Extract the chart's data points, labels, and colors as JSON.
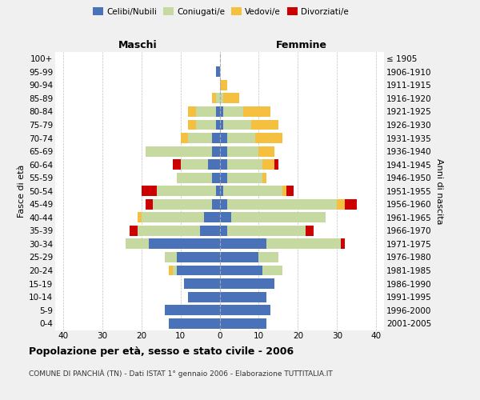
{
  "age_groups": [
    "0-4",
    "5-9",
    "10-14",
    "15-19",
    "20-24",
    "25-29",
    "30-34",
    "35-39",
    "40-44",
    "45-49",
    "50-54",
    "55-59",
    "60-64",
    "65-69",
    "70-74",
    "75-79",
    "80-84",
    "85-89",
    "90-94",
    "95-99",
    "100+"
  ],
  "birth_years": [
    "2001-2005",
    "1996-2000",
    "1991-1995",
    "1986-1990",
    "1981-1985",
    "1976-1980",
    "1971-1975",
    "1966-1970",
    "1961-1965",
    "1956-1960",
    "1951-1955",
    "1946-1950",
    "1941-1945",
    "1936-1940",
    "1931-1935",
    "1926-1930",
    "1921-1925",
    "1916-1920",
    "1911-1915",
    "1906-1910",
    "≤ 1905"
  ],
  "males": {
    "celibi": [
      13,
      14,
      8,
      9,
      11,
      11,
      18,
      5,
      4,
      2,
      1,
      2,
      3,
      2,
      2,
      1,
      1,
      0,
      0,
      1,
      0
    ],
    "coniugati": [
      0,
      0,
      0,
      0,
      1,
      3,
      6,
      16,
      16,
      15,
      15,
      9,
      7,
      17,
      6,
      5,
      5,
      1,
      0,
      0,
      0
    ],
    "vedovi": [
      0,
      0,
      0,
      0,
      1,
      0,
      0,
      0,
      1,
      0,
      0,
      0,
      0,
      0,
      2,
      2,
      2,
      1,
      0,
      0,
      0
    ],
    "divorziati": [
      0,
      0,
      0,
      0,
      0,
      0,
      0,
      2,
      0,
      2,
      4,
      0,
      2,
      0,
      0,
      0,
      0,
      0,
      0,
      0,
      0
    ]
  },
  "females": {
    "nubili": [
      12,
      13,
      12,
      14,
      11,
      10,
      12,
      2,
      3,
      2,
      1,
      2,
      2,
      2,
      2,
      1,
      1,
      0,
      0,
      0,
      0
    ],
    "coniugate": [
      0,
      0,
      0,
      0,
      5,
      5,
      19,
      20,
      24,
      28,
      15,
      9,
      9,
      8,
      7,
      7,
      5,
      1,
      0,
      0,
      0
    ],
    "vedove": [
      0,
      0,
      0,
      0,
      0,
      0,
      0,
      0,
      0,
      2,
      1,
      1,
      3,
      4,
      7,
      7,
      7,
      4,
      2,
      0,
      0
    ],
    "divorziate": [
      0,
      0,
      0,
      0,
      0,
      0,
      1,
      2,
      0,
      3,
      2,
      0,
      1,
      0,
      0,
      0,
      0,
      0,
      0,
      0,
      0
    ]
  },
  "colors": {
    "celibi": "#4a72b8",
    "coniugati": "#c5d9a0",
    "vedovi": "#f5c040",
    "divorziati": "#cc0000"
  },
  "xlim": 42,
  "title": "Popolazione per età, sesso e stato civile - 2006",
  "subtitle": "COMUNE DI PANCHIÀ (TN) - Dati ISTAT 1° gennaio 2006 - Elaborazione TUTTITALIA.IT",
  "ylabel_left": "Fasce di età",
  "ylabel_right": "Anni di nascita",
  "xlabel_left": "Maschi",
  "xlabel_right": "Femmine",
  "bg_color": "#f0f0f0",
  "plot_bg_color": "#ffffff"
}
